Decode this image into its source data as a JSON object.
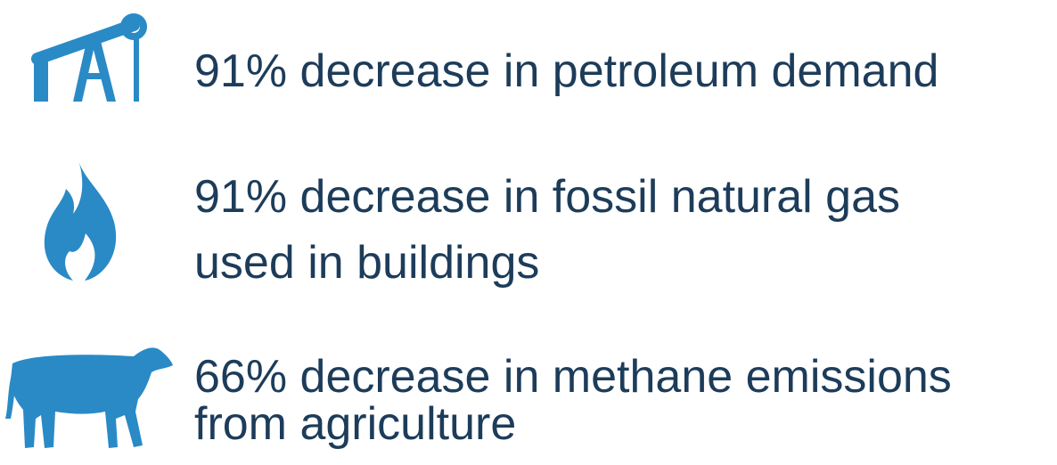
{
  "items": [
    {
      "lines": [
        "91% decrease in petroleum demand"
      ]
    },
    {
      "lines": [
        "91% decrease in fossil natural gas",
        "used in buildings"
      ]
    },
    {
      "lines": [
        "66% decrease in methane emissions",
        "from agriculture"
      ]
    }
  ]
}
